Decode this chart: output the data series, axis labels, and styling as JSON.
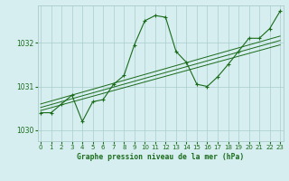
{
  "title": "Graphe pression niveau de la mer (hPa)",
  "bg_color": "#d6eef0",
  "line_color": "#1a6b1a",
  "grid_color": "#aacccc",
  "x_values": [
    0,
    1,
    2,
    3,
    4,
    5,
    6,
    7,
    8,
    9,
    10,
    11,
    12,
    13,
    14,
    15,
    16,
    17,
    18,
    19,
    20,
    21,
    22,
    23
  ],
  "main_line": [
    1030.4,
    1030.4,
    1030.6,
    1030.8,
    1030.2,
    1030.65,
    1030.7,
    1031.05,
    1031.25,
    1031.95,
    1032.5,
    1032.62,
    1032.58,
    1031.8,
    1031.55,
    1031.05,
    1031.0,
    1031.22,
    1031.5,
    1031.8,
    1032.1,
    1032.1,
    1032.32,
    1032.72
  ],
  "trend_lines": [
    [
      [
        0,
        23
      ],
      [
        1030.45,
        1031.95
      ]
    ],
    [
      [
        0,
        23
      ],
      [
        1030.52,
        1032.05
      ]
    ],
    [
      [
        0,
        23
      ],
      [
        1030.6,
        1032.15
      ]
    ]
  ],
  "ylim": [
    1029.75,
    1032.85
  ],
  "yticks": [
    1030,
    1031,
    1032
  ],
  "xlim": [
    -0.3,
    23.3
  ],
  "xticks": [
    0,
    1,
    2,
    3,
    4,
    5,
    6,
    7,
    8,
    9,
    10,
    11,
    12,
    13,
    14,
    15,
    16,
    17,
    18,
    19,
    20,
    21,
    22,
    23
  ]
}
